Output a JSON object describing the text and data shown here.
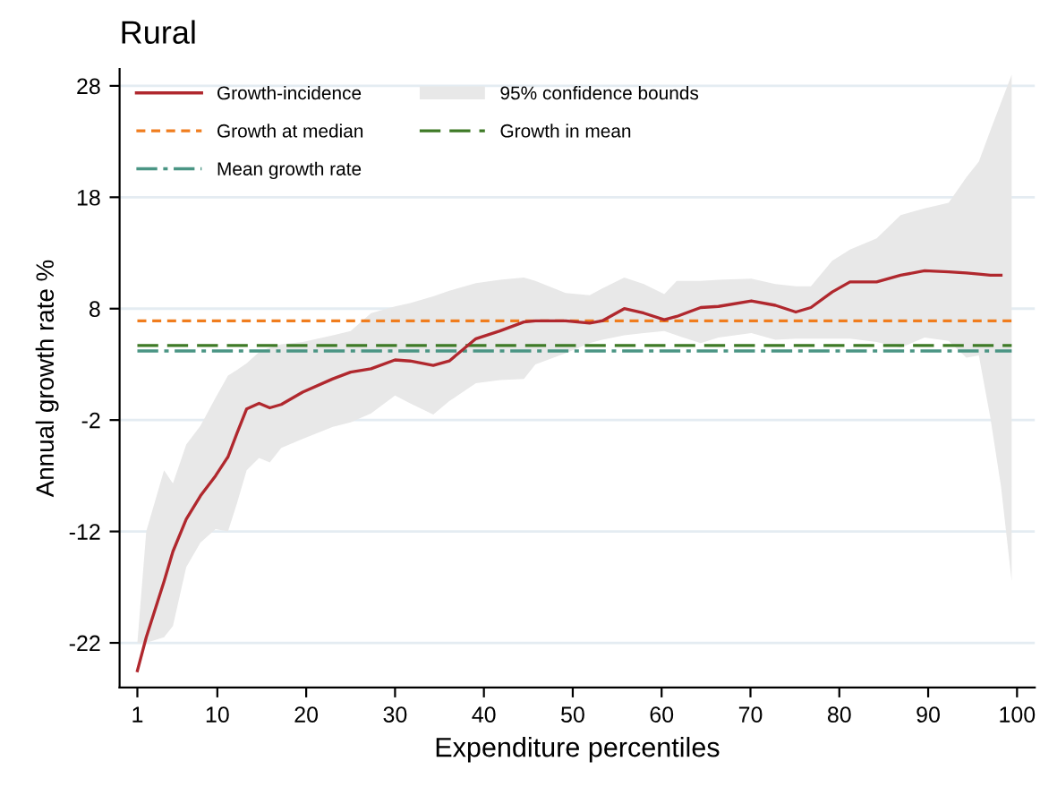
{
  "chart_data": {
    "type": "line",
    "title": "Rural",
    "xlabel": "Expenditure percentiles",
    "ylabel": "Annual growth rate %",
    "xlim": [
      -1,
      102
    ],
    "xticks": [
      1,
      10,
      20,
      30,
      40,
      50,
      60,
      70,
      80,
      90,
      100
    ],
    "ylim": [
      -26,
      29.5
    ],
    "yticks": [
      -22,
      -12,
      -2,
      8,
      18,
      28
    ],
    "grid": "y",
    "legend": "top left",
    "annotations": [
      "95% confidence bounds"
    ],
    "series": [
      {
        "name": "Growth-incidence",
        "color": "#b0282e",
        "x": [
          1,
          2,
          4,
          5,
          6.5,
          8.1,
          9.8,
          11.2,
          12.2,
          13.3,
          14.7,
          15.9,
          17.2,
          19.6,
          23,
          25,
          27.3,
          30,
          31.7,
          34.3,
          36.1,
          39.1,
          41.8,
          44.5,
          45.8,
          49.2,
          51.9,
          53.3,
          55.8,
          58,
          60.3,
          61.7,
          64.4,
          66.4,
          70.1,
          72.8,
          75.1,
          76.8,
          79.2,
          81.2,
          84.2,
          86.9,
          89.6,
          92.3,
          94.3,
          95.7,
          97,
          98.2,
          99.4
        ],
        "values": [
          -24.5,
          -21.5,
          -16.5,
          -13.8,
          -10.9,
          -8.8,
          -7.0,
          -5.3,
          -3.2,
          -1.0,
          -0.5,
          -0.9,
          -0.6,
          0.5,
          1.7,
          2.3,
          2.6,
          3.4,
          3.3,
          2.9,
          3.3,
          5.3,
          6.0,
          6.8,
          6.9,
          6.9,
          6.7,
          6.9,
          8.0,
          7.6,
          7.0,
          7.3,
          8.1,
          8.2,
          8.7,
          8.3,
          7.7,
          8.1,
          9.5,
          10.4,
          10.4,
          11.0,
          11.4,
          11.3,
          11.2,
          11.1,
          11.0,
          11.0,
          null
        ],
        "upper": [
          -22,
          -12,
          -6.5,
          -7.7,
          -4.2,
          -2.5,
          0,
          2.0,
          2.5,
          3.1,
          4.1,
          4.5,
          4.8,
          5.0,
          5.6,
          6.0,
          7.6,
          8.2,
          8.5,
          9.1,
          9.6,
          10.3,
          10.6,
          10.8,
          10.5,
          9.4,
          9.2,
          9.8,
          10.8,
          10.2,
          9.3,
          10.5,
          10.5,
          10.6,
          10.7,
          10.2,
          10.0,
          10.0,
          12.3,
          13.3,
          14.3,
          16.4,
          17.0,
          17.5,
          19.8,
          21.2,
          24,
          26.5,
          29
        ],
        "lower": [
          -22,
          -22,
          -21.5,
          -20.5,
          -15.2,
          -13,
          -11.8,
          -12,
          -9.5,
          -6.5,
          -5.4,
          -5.8,
          -4.5,
          -3.7,
          -2.6,
          -2.2,
          -1.4,
          0.2,
          -0.5,
          -1.5,
          -0.3,
          1.3,
          1.6,
          1.7,
          3.0,
          4.0,
          4.9,
          5.2,
          5.6,
          5.8,
          6.0,
          5.6,
          4.9,
          5.4,
          5.8,
          5.2,
          5.3,
          5.3,
          5.3,
          5.3,
          5.0,
          4.5,
          5.4,
          5.1,
          3.6,
          3.8,
          -1.8,
          -8.0,
          -16.5
        ]
      }
    ],
    "ref_lines": [
      {
        "axis": "y",
        "value": 6.9,
        "label": "Growth at median",
        "color": "#f07d1e",
        "line_style": "dashed"
      },
      {
        "axis": "y",
        "value": 4.7,
        "label": "Growth in mean",
        "color": "#3e7a26",
        "line_style": "longdash"
      },
      {
        "axis": "y",
        "value": 4.2,
        "label": "Mean growth rate",
        "color": "#4a9584",
        "line_style": "dashdot"
      }
    ]
  }
}
